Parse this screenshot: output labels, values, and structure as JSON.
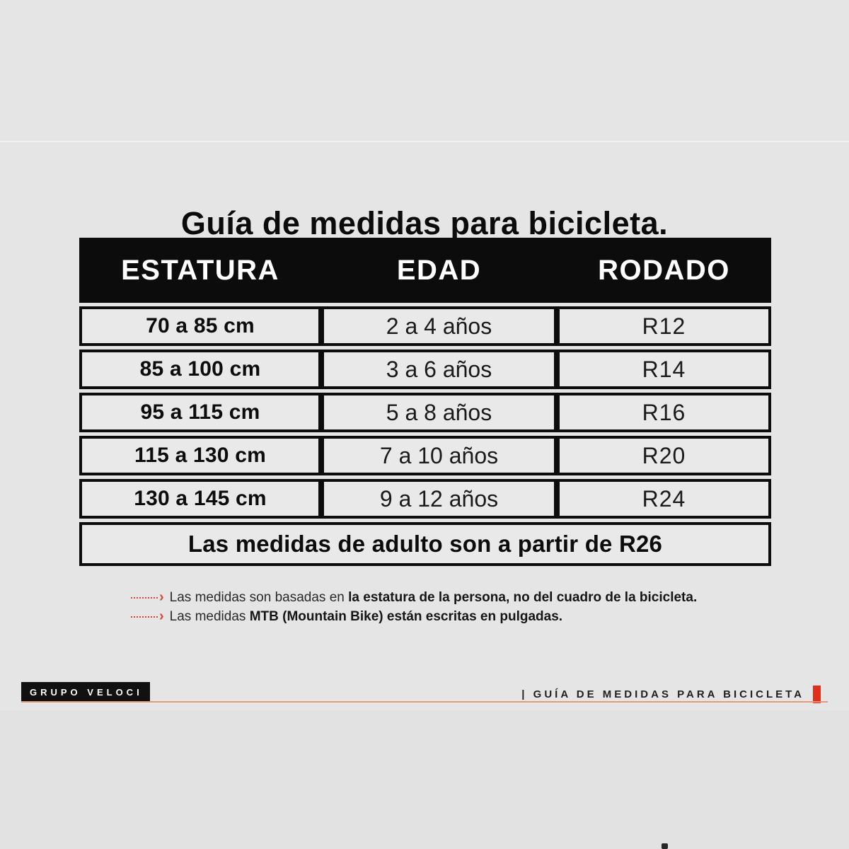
{
  "title": "Guía de medidas para bicicleta.",
  "table": {
    "headers": [
      "ESTATURA",
      "EDAD",
      "RODADO"
    ],
    "rows": [
      {
        "estatura": "70 a 85 cm",
        "edad": "2 a 4 años",
        "rodado": "R12"
      },
      {
        "estatura": "85 a 100 cm",
        "edad": "3 a 6 años",
        "rodado": "R14"
      },
      {
        "estatura": "95 a 115 cm",
        "edad": "5 a 8 años",
        "rodado": "R16"
      },
      {
        "estatura": "115 a 130 cm",
        "edad": "7 a 10 años",
        "rodado": "R20"
      },
      {
        "estatura": "130 a 145 cm",
        "edad": "9 a 12 años",
        "rodado": "R24"
      }
    ],
    "footer": "Las medidas de adulto son a partir de R26"
  },
  "notes": [
    {
      "prefix": "Las medidas son basadas en ",
      "bold": "la estatura de la persona, no del cuadro de la bicicleta."
    },
    {
      "prefix": "Las medidas ",
      "bold": "MTB (Mountain Bike) están escritas en pulgadas."
    }
  ],
  "footer_bar": {
    "brand": "GRUPO VELOCI",
    "caption": "| GUÍA DE MEDIDAS PARA BICICLETA"
  },
  "colors": {
    "background": "#e6e5e6",
    "table_black": "#0c0c0c",
    "cell_bg": "#eae9ea",
    "accent_red": "#e0301a",
    "leader_red": "#d64733",
    "rule_salmon": "#eb9579"
  }
}
